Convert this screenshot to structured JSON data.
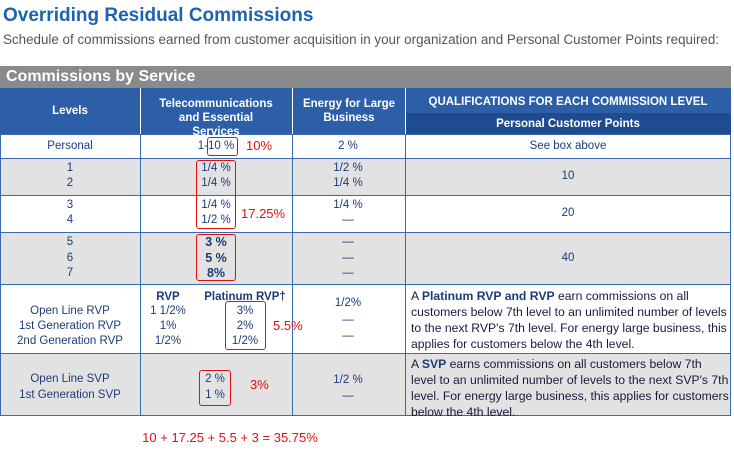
{
  "header": {
    "title": "Overriding Residual Commissions",
    "subtitle": "Schedule of commissions earned from customer acquisition in your organization and Personal Customer Points required:"
  },
  "table": {
    "title": "Commissions by Service",
    "columns": [
      "Levels",
      "Telecommunications and Essential Services",
      "Energy for Large Business",
      "QUALIFICATIONS FOR EACH COMMISSION LEVEL"
    ],
    "subheader": "Personal Customer Points",
    "rows": [
      {
        "levels": [
          "Personal"
        ],
        "telecom": [
          "1-10 %"
        ],
        "energy": [
          "2 %"
        ],
        "points": "See box above"
      },
      {
        "levels": [
          "1",
          "2"
        ],
        "telecom": [
          "1/4 %",
          "1/4 %"
        ],
        "energy": [
          "1/2 %",
          "1/4 %"
        ],
        "points": "10"
      },
      {
        "levels": [
          "3",
          "4"
        ],
        "telecom": [
          "1/4 %",
          "1/2 %"
        ],
        "energy": [
          "1/4 %",
          "—"
        ],
        "points": "20"
      },
      {
        "levels": [
          "5",
          "6",
          "7"
        ],
        "telecom": [
          "3 %",
          "5 %",
          "8%"
        ],
        "energy": [
          "—",
          "—",
          "—"
        ],
        "points": "40"
      }
    ],
    "rvp": {
      "levels": [
        "Open Line RVP",
        "1st Generation RVP",
        "2nd Generation RVP"
      ],
      "rvp_header": "RVP",
      "rvp": [
        "1 1/2%",
        "1%",
        "1/2%"
      ],
      "platinum_header": "Platinum RVP†",
      "platinum": [
        "3%",
        "2%",
        "1/2%"
      ],
      "energy": [
        "1/2%",
        "—",
        "—"
      ],
      "note": {
        "prefix": "A",
        "emphasis": "Platinum RVP and RVP",
        "suffix": "earn commissions on all customers below 7th level to an unlimited number of levels to the next RVP's 7th level. For energy large business, this applies for customers below the 4th level."
      }
    },
    "svp": {
      "levels": [
        "Open Line SVP",
        "1st Generation SVP"
      ],
      "telecom": [
        "2 %",
        "1 %"
      ],
      "energy": [
        "1/2 %",
        "—"
      ],
      "note": {
        "prefix": "A",
        "emphasis": "SVP",
        "suffix": "earns commissions on all customers below 7th level to an unlimited number of levels to the next SVP's 7th level. For energy large business, this applies for customers below the 4th level."
      }
    }
  },
  "annotations": {
    "personal": "10%",
    "levels_1_4": "17.25%",
    "rvp": "5.5%",
    "svp": "3%",
    "total": "10 + 17.25 + 5.5 + 3 = 35.75%"
  }
}
